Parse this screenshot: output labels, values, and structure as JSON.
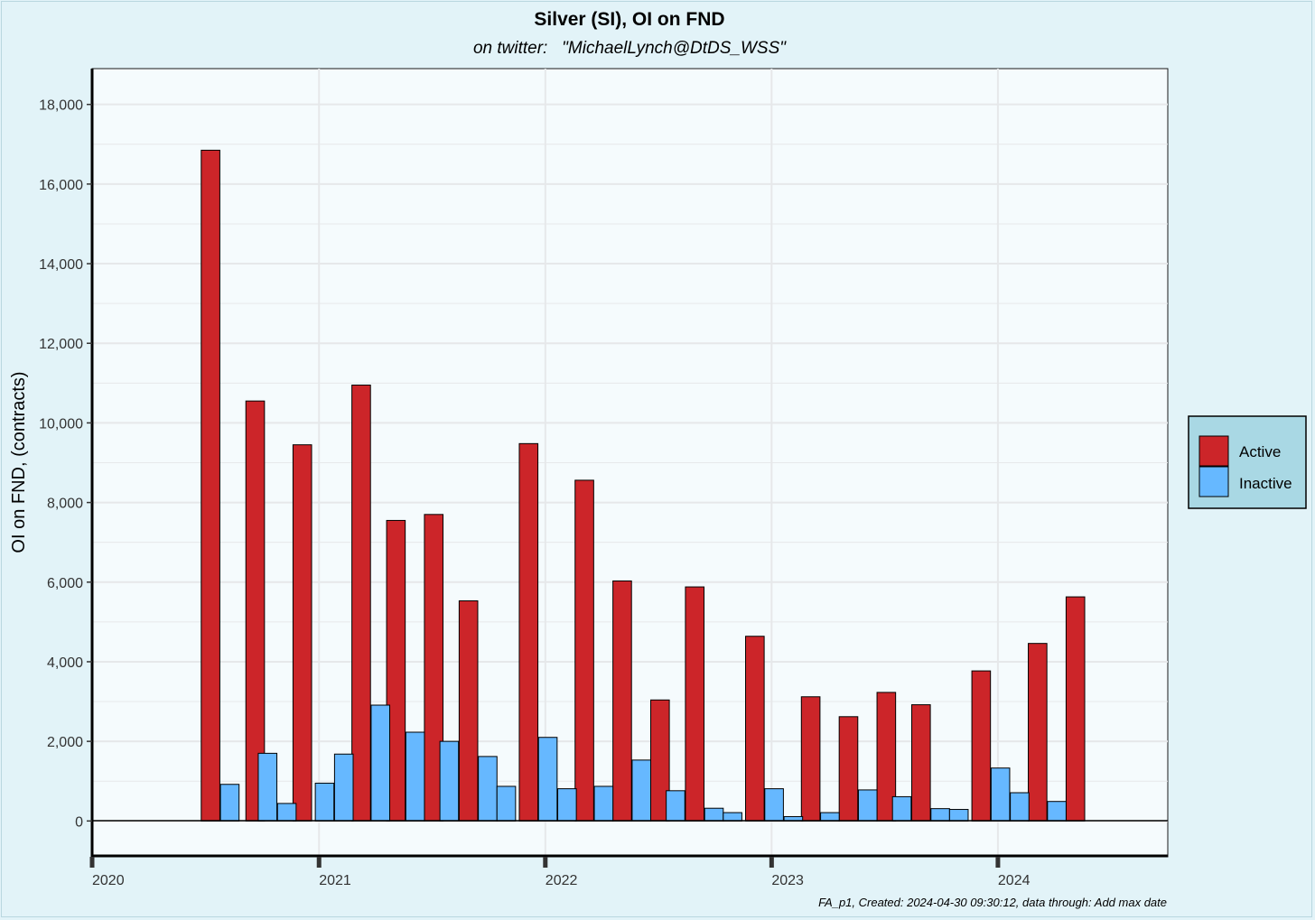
{
  "chart_data": {
    "type": "bar",
    "title": "Silver (SI), OI on FND",
    "subtitle": "on twitter:   \"MichaelLynch@DtDS_WSS\"",
    "xlabel": "",
    "ylabel": "OI on FND, (contracts)",
    "caption": "FA_p1, Created: 2024-04-30 09:30:12, data through:  Add max date",
    "ylim": [
      -900,
      18900
    ],
    "xlim": [
      "2020-01-01",
      "2024-10-01"
    ],
    "yticks": [
      0,
      2000,
      4000,
      6000,
      8000,
      10000,
      12000,
      14000,
      16000,
      18000
    ],
    "ytick_labels": [
      "0",
      "2,000",
      "4,000",
      "6,000",
      "8,000",
      "10,000",
      "12,000",
      "14,000",
      "16,000",
      "18,000"
    ],
    "xticks": [
      "2020-01-01",
      "2021-01-01",
      "2022-01-01",
      "2023-01-01",
      "2024-01-01"
    ],
    "xtick_labels": [
      "2020",
      "2021",
      "2022",
      "2023",
      "2024"
    ],
    "grid": true,
    "legend_position": "right",
    "colors": {
      "Active": "#cc2529",
      "Inactive": "#66b8ff",
      "bar_outline": "#000000",
      "panel_bg": "#f5fbfd",
      "page_bg": "#e2f3f8",
      "grid": "#e6e8ea",
      "legend_bg": "#a9d8e4"
    },
    "series": [
      {
        "name": "Active",
        "points": [
          {
            "x": "2020-07-10",
            "y": 16850
          },
          {
            "x": "2020-09-20",
            "y": 10550
          },
          {
            "x": "2020-12-05",
            "y": 9450
          },
          {
            "x": "2021-03-10",
            "y": 10950
          },
          {
            "x": "2021-05-05",
            "y": 7550
          },
          {
            "x": "2021-07-05",
            "y": 7700
          },
          {
            "x": "2021-08-30",
            "y": 5530
          },
          {
            "x": "2021-12-05",
            "y": 9480
          },
          {
            "x": "2022-03-05",
            "y": 8560
          },
          {
            "x": "2022-05-05",
            "y": 6030
          },
          {
            "x": "2022-07-05",
            "y": 3040
          },
          {
            "x": "2022-08-30",
            "y": 5880
          },
          {
            "x": "2022-12-05",
            "y": 4640
          },
          {
            "x": "2023-03-05",
            "y": 3120
          },
          {
            "x": "2023-05-05",
            "y": 2620
          },
          {
            "x": "2023-07-05",
            "y": 3230
          },
          {
            "x": "2023-08-30",
            "y": 2920
          },
          {
            "x": "2023-12-05",
            "y": 3770
          },
          {
            "x": "2024-03-05",
            "y": 4460
          },
          {
            "x": "2024-05-05",
            "y": 5630
          }
        ]
      },
      {
        "name": "Inactive",
        "points": [
          {
            "x": "2020-08-10",
            "y": 920
          },
          {
            "x": "2020-10-10",
            "y": 1700
          },
          {
            "x": "2020-11-10",
            "y": 440
          },
          {
            "x": "2021-01-10",
            "y": 950
          },
          {
            "x": "2021-02-10",
            "y": 1680
          },
          {
            "x": "2021-04-10",
            "y": 2910
          },
          {
            "x": "2021-06-05",
            "y": 2230
          },
          {
            "x": "2021-07-30",
            "y": 2000
          },
          {
            "x": "2021-09-30",
            "y": 1620
          },
          {
            "x": "2021-10-30",
            "y": 870
          },
          {
            "x": "2022-01-05",
            "y": 2100
          },
          {
            "x": "2022-02-05",
            "y": 810
          },
          {
            "x": "2022-04-05",
            "y": 870
          },
          {
            "x": "2022-06-05",
            "y": 1530
          },
          {
            "x": "2022-07-30",
            "y": 760
          },
          {
            "x": "2022-09-30",
            "y": 320
          },
          {
            "x": "2022-10-30",
            "y": 210
          },
          {
            "x": "2023-01-05",
            "y": 810
          },
          {
            "x": "2023-02-05",
            "y": 110
          },
          {
            "x": "2023-04-05",
            "y": 210
          },
          {
            "x": "2023-06-05",
            "y": 780
          },
          {
            "x": "2023-07-30",
            "y": 610
          },
          {
            "x": "2023-09-30",
            "y": 310
          },
          {
            "x": "2023-10-30",
            "y": 290
          },
          {
            "x": "2024-01-05",
            "y": 1330
          },
          {
            "x": "2024-02-05",
            "y": 710
          },
          {
            "x": "2024-04-05",
            "y": 490
          }
        ]
      }
    ]
  }
}
